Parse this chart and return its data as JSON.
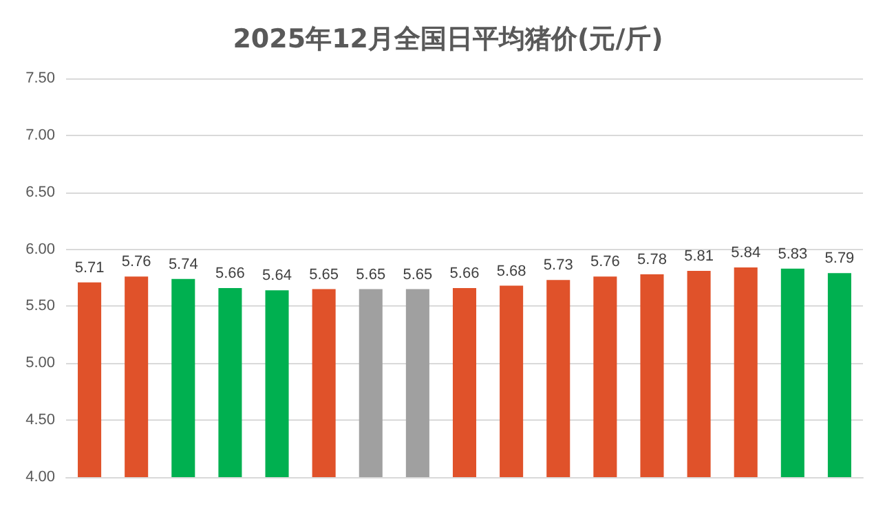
{
  "chart_data": {
    "type": "bar",
    "title": "2025年12月全国日平均猪价(元/斤)",
    "categories": [
      null,
      null,
      null,
      null,
      null,
      null,
      null,
      null,
      null,
      null,
      null,
      null,
      null,
      null,
      null,
      null,
      null
    ],
    "values": [
      5.71,
      5.76,
      5.74,
      5.66,
      5.64,
      5.65,
      5.65,
      5.65,
      5.66,
      5.68,
      5.73,
      5.76,
      5.78,
      5.81,
      5.84,
      5.83,
      5.79
    ],
    "colors": [
      "#e0522a",
      "#e0522a",
      "#00b050",
      "#00b050",
      "#00b050",
      "#e0522a",
      "#a0a0a0",
      "#a0a0a0",
      "#e0522a",
      "#e0522a",
      "#e0522a",
      "#e0522a",
      "#e0522a",
      "#e0522a",
      "#e0522a",
      "#00b050",
      "#00b050"
    ],
    "ylim": [
      4,
      7.5
    ],
    "yticks": [
      {
        "value": 4,
        "label": "4.00"
      },
      {
        "value": 4.5,
        "label": "4.50"
      },
      {
        "value": 5,
        "label": "5.00"
      },
      {
        "value": 5.5,
        "label": "5.50"
      },
      {
        "value": 6,
        "label": "6.00"
      },
      {
        "value": 6.5,
        "label": "6.50"
      },
      {
        "value": 7,
        "label": "7.00"
      },
      {
        "value": 7.5,
        "label": "7.50"
      }
    ],
    "grid": "y",
    "data_labels": true,
    "tick_labels": "y"
  }
}
